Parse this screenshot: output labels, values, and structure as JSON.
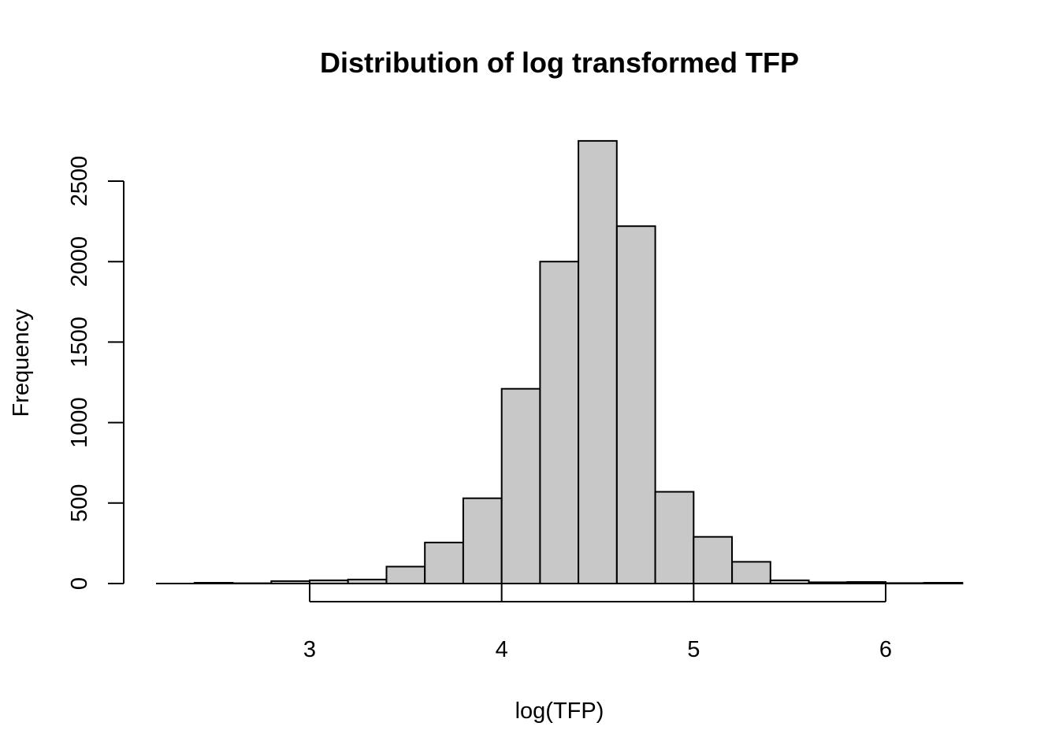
{
  "chart_data": {
    "type": "bar",
    "title": "Distribution of log transformed TFP",
    "xlabel": "log(TFP)",
    "ylabel": "Frequency",
    "bin_edges": [
      2.2,
      2.4,
      2.6,
      2.8,
      3.0,
      3.2,
      3.4,
      3.6,
      3.8,
      4.0,
      4.2,
      4.4,
      4.6,
      4.8,
      5.0,
      5.2,
      5.4,
      5.6,
      5.8,
      6.0,
      6.2,
      6.4
    ],
    "values": [
      0,
      5,
      2,
      15,
      20,
      25,
      105,
      255,
      530,
      1210,
      2000,
      2750,
      2220,
      570,
      290,
      135,
      20,
      8,
      10,
      3,
      5
    ],
    "x_ticks": [
      "3",
      "4",
      "5",
      "6"
    ],
    "x_tick_values": [
      3,
      4,
      5,
      6
    ],
    "y_ticks": [
      "0",
      "500",
      "1000",
      "1500",
      "2000",
      "2500"
    ],
    "y_tick_values": [
      0,
      500,
      1000,
      1500,
      2000,
      2500
    ],
    "xlim": [
      2.2,
      6.4
    ],
    "ylim": [
      0,
      2750
    ],
    "bar_color": "#c8c8c8",
    "grid": false
  }
}
